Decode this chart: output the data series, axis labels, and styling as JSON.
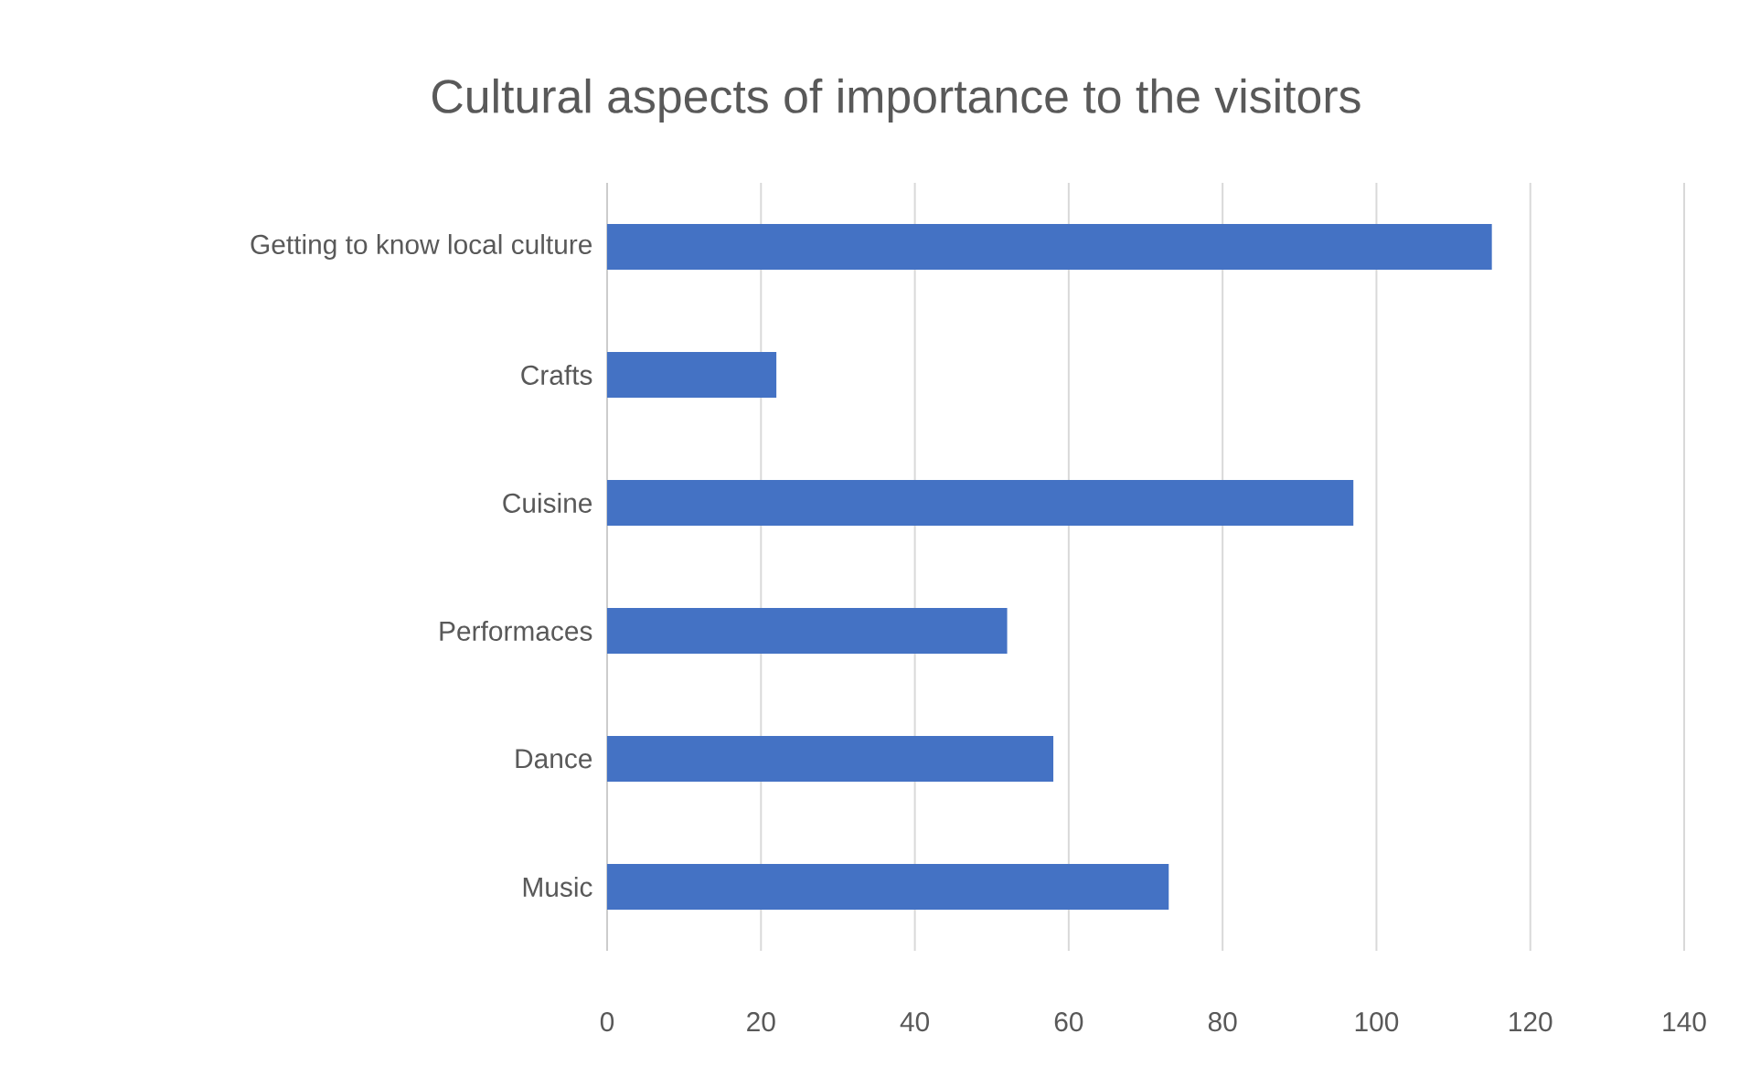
{
  "chart_data": {
    "type": "bar",
    "orientation": "horizontal",
    "title": "Cultural aspects of importance to the visitors",
    "categories": [
      "Getting to know local culture",
      "Crafts",
      "Cuisine",
      "Performaces",
      "Dance",
      "Music"
    ],
    "values": [
      115,
      22,
      97,
      52,
      58,
      73
    ],
    "color": "#4472c4",
    "xlim": [
      0,
      140
    ],
    "xticks": [
      0,
      20,
      40,
      60,
      80,
      100,
      120,
      140
    ],
    "grid": "x"
  }
}
